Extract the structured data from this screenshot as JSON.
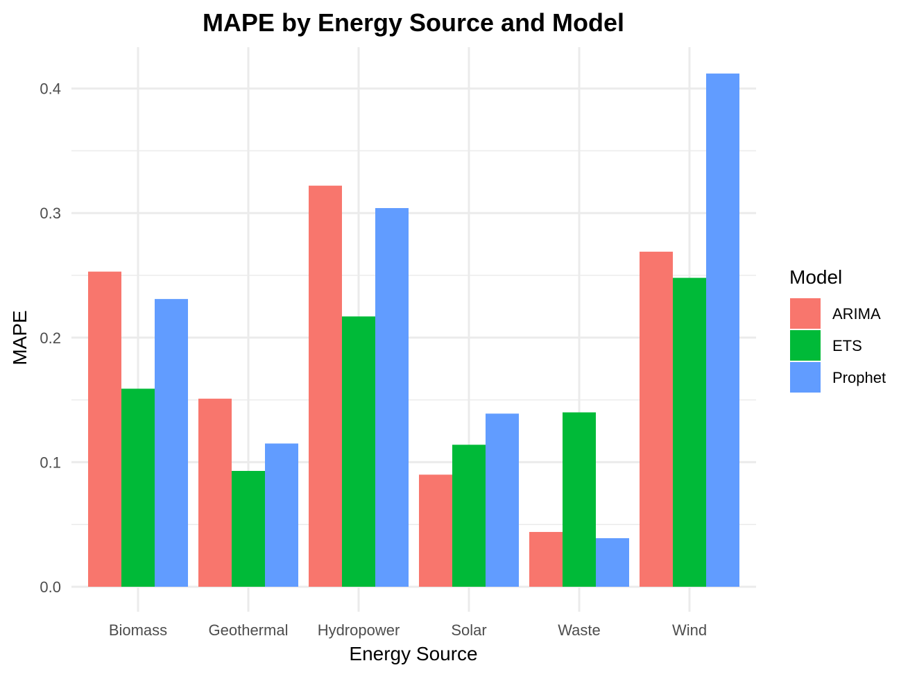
{
  "chart_data": {
    "type": "bar",
    "title": "MAPE by Energy Source and Model",
    "xlabel": "Energy Source",
    "ylabel": "MAPE",
    "categories": [
      "Biomass",
      "Geothermal",
      "Hydropower",
      "Solar",
      "Waste",
      "Wind"
    ],
    "series": [
      {
        "name": "ARIMA",
        "color": "#F8766D",
        "values": [
          0.253,
          0.151,
          0.322,
          0.09,
          0.044,
          0.269
        ]
      },
      {
        "name": "ETS",
        "color": "#00BA38",
        "values": [
          0.159,
          0.093,
          0.217,
          0.114,
          0.14,
          0.248
        ]
      },
      {
        "name": "Prophet",
        "color": "#619CFF",
        "values": [
          0.231,
          0.115,
          0.304,
          0.139,
          0.039,
          0.412
        ]
      }
    ],
    "ylim": [
      0,
      0.43
    ],
    "yticks": [
      "0.0",
      "0.1",
      "0.2",
      "0.3",
      "0.4"
    ],
    "grid": true,
    "legend": {
      "title": "Model",
      "position": "right"
    }
  }
}
